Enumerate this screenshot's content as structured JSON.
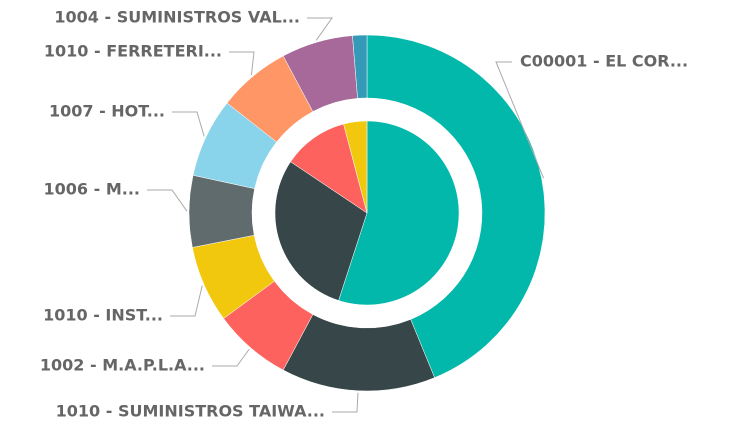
{
  "chart_data": {
    "type": "donut",
    "outer": {
      "categories": [
        "C00001 - EL COR...",
        "1010 - SUMINISTROS TAIWA...",
        "1002 - M.A.P.L.A...",
        "1010 - INST...",
        "1006 - M...",
        "1007 - HOT...",
        "1010 - FERRETERI...",
        "1004 - SUMINISTROS VAL...",
        null
      ],
      "values": [
        43.8,
        14,
        7.1,
        7,
        6.5,
        7.2,
        6.6,
        6.5,
        1.3
      ],
      "colors": [
        "#01B8AA",
        "#374649",
        "#FD625E",
        "#F2C80F",
        "#5F6B6D",
        "#8AD4EB",
        "#FE9666",
        "#A66999",
        "#3599B8"
      ]
    },
    "inner": {
      "values": [
        55,
        29.4,
        11.5,
        4.1
      ],
      "colors": [
        "#01B8AA",
        "#374649",
        "#FD625E",
        "#F2C80F"
      ]
    }
  }
}
